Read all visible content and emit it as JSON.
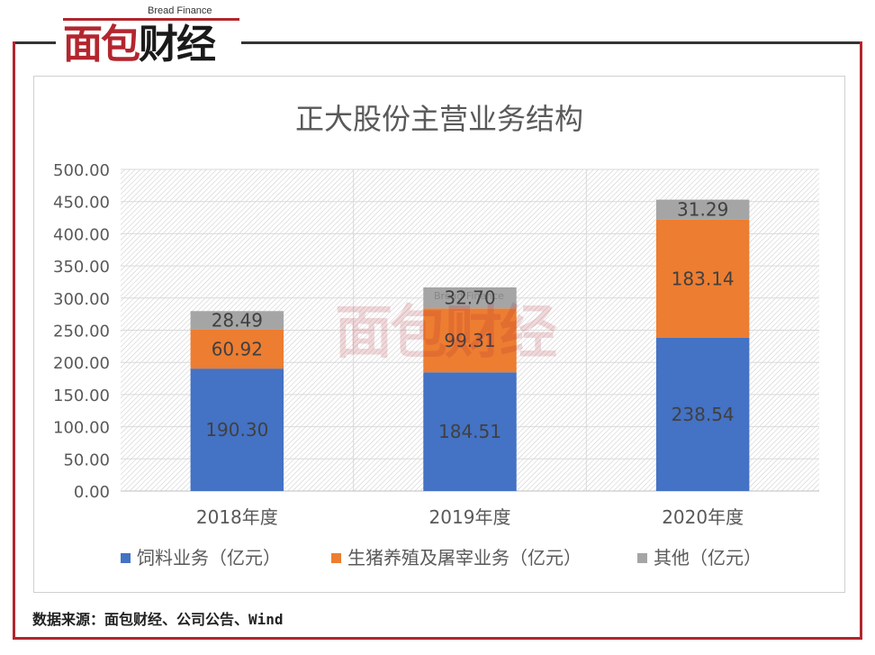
{
  "brand": {
    "logo_text_part1": "面包",
    "logo_text_part2": "财经",
    "logo_subtitle": "Bread Finance"
  },
  "source_note": "数据来源：面包财经、公司公告、Wind",
  "colors": {
    "feed": "#4472c4",
    "pig": "#ed7d31",
    "other": "#a5a5a5",
    "frame": "#b3262e"
  },
  "chart_data": {
    "type": "bar",
    "stacked": true,
    "title": "正大股份主营业务结构",
    "categories": [
      "2018年度",
      "2019年度",
      "2020年度"
    ],
    "series": [
      {
        "name": "饲料业务（亿元）",
        "values": [
          190.3,
          184.51,
          238.54
        ],
        "labels": [
          "190.30",
          "184.51",
          "238.54"
        ]
      },
      {
        "name": "生猪养殖及屠宰业务（亿元）",
        "values": [
          60.92,
          99.31,
          183.14
        ],
        "labels": [
          "60.92",
          "99.31",
          "183.14"
        ]
      },
      {
        "name": "其他（亿元）",
        "values": [
          28.49,
          32.7,
          31.29
        ],
        "labels": [
          "28.49",
          "32.70",
          "31.29"
        ]
      }
    ],
    "ylim": [
      0,
      500
    ],
    "yticks": [
      "0.00",
      "50.00",
      "100.00",
      "150.00",
      "200.00",
      "250.00",
      "300.00",
      "350.00",
      "400.00",
      "450.00",
      "500.00"
    ],
    "grid": true,
    "legend": "bottom"
  }
}
